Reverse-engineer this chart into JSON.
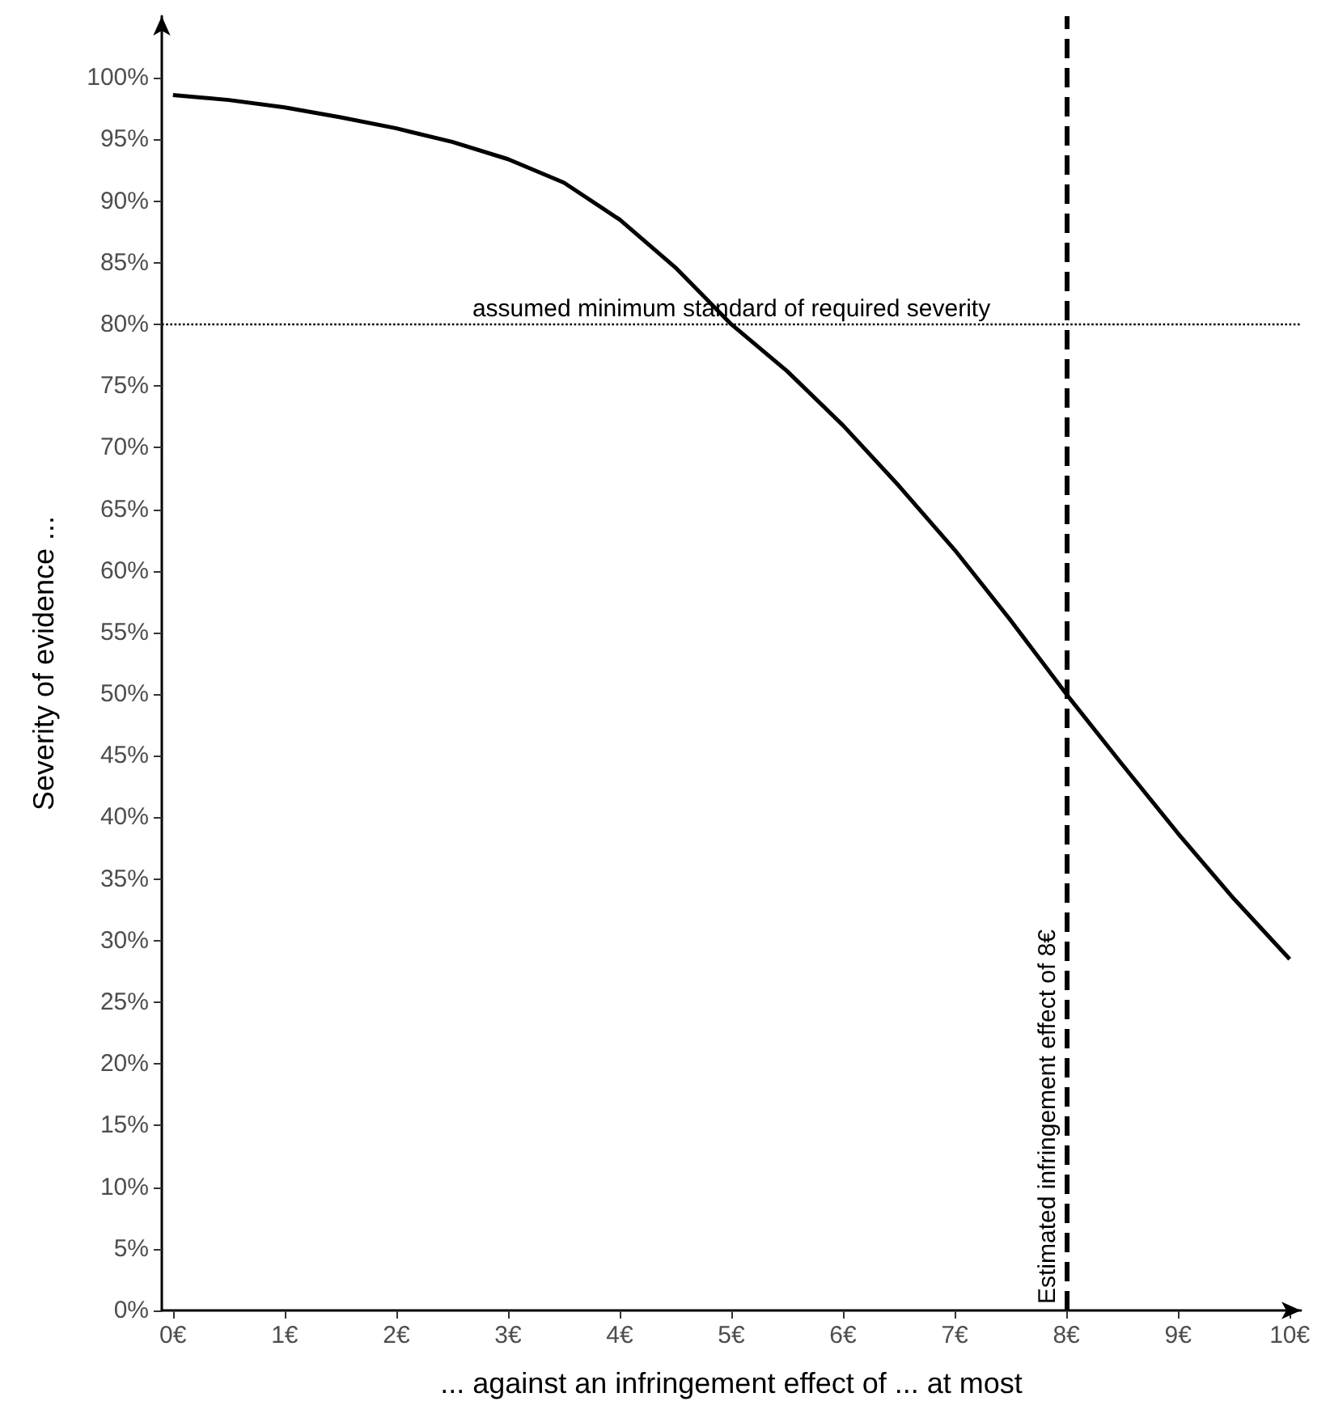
{
  "chart_data": {
    "type": "line",
    "xlabel": "... against an infringement effect of ... at most",
    "ylabel": "Severity of evidence ...",
    "x": [
      0,
      0.5,
      1,
      1.5,
      2,
      2.5,
      3,
      3.5,
      4,
      4.5,
      5,
      5.5,
      6,
      6.5,
      7,
      7.5,
      8,
      8.5,
      9,
      9.5,
      10
    ],
    "series": [
      {
        "color": "#000000",
        "values": [
          98.6,
          98.2,
          97.6,
          96.8,
          95.9,
          94.8,
          93.4,
          91.5,
          88.5,
          84.6,
          80,
          76.2,
          71.8,
          66.9,
          61.7,
          56,
          50,
          44.3,
          38.7,
          33.4,
          28.5
        ]
      }
    ],
    "xlim": [
      -0.1,
      10.1
    ],
    "xticks": [
      {
        "value": 0,
        "label": "0€"
      },
      {
        "value": 1,
        "label": "1€"
      },
      {
        "value": 2,
        "label": "2€"
      },
      {
        "value": 3,
        "label": "3€"
      },
      {
        "value": 4,
        "label": "4€"
      },
      {
        "value": 5,
        "label": "5€"
      },
      {
        "value": 6,
        "label": "6€"
      },
      {
        "value": 7,
        "label": "7€"
      },
      {
        "value": 8,
        "label": "8€"
      },
      {
        "value": 9,
        "label": "9€"
      },
      {
        "value": 10,
        "label": "10€"
      }
    ],
    "ylim": [
      0,
      105
    ],
    "yticks": [
      {
        "value": 0,
        "label": "0%"
      },
      {
        "value": 5,
        "label": "5%"
      },
      {
        "value": 10,
        "label": "10%"
      },
      {
        "value": 15,
        "label": "15%"
      },
      {
        "value": 20,
        "label": "20%"
      },
      {
        "value": 25,
        "label": "25%"
      },
      {
        "value": 30,
        "label": "30%"
      },
      {
        "value": 35,
        "label": "35%"
      },
      {
        "value": 40,
        "label": "40%"
      },
      {
        "value": 45,
        "label": "45%"
      },
      {
        "value": 50,
        "label": "50%"
      },
      {
        "value": 55,
        "label": "55%"
      },
      {
        "value": 60,
        "label": "60%"
      },
      {
        "value": 65,
        "label": "65%"
      },
      {
        "value": 70,
        "label": "70%"
      },
      {
        "value": 75,
        "label": "75%"
      },
      {
        "value": 80,
        "label": "80%"
      },
      {
        "value": 85,
        "label": "85%"
      },
      {
        "value": 90,
        "label": "90%"
      },
      {
        "value": 95,
        "label": "95%"
      },
      {
        "value": 100,
        "label": "100%"
      }
    ],
    "ref_lines": [
      {
        "axis": "y",
        "value": 80,
        "label": "assumed minimum standard of required severity",
        "color": "#000000",
        "line_style": "dotted"
      },
      {
        "axis": "x",
        "value": 8,
        "label": "Estimated infringement effect of 8€",
        "color": "#000000",
        "line_style": "dashed"
      }
    ],
    "grid": false,
    "marker": "none",
    "line_style": "solid"
  }
}
